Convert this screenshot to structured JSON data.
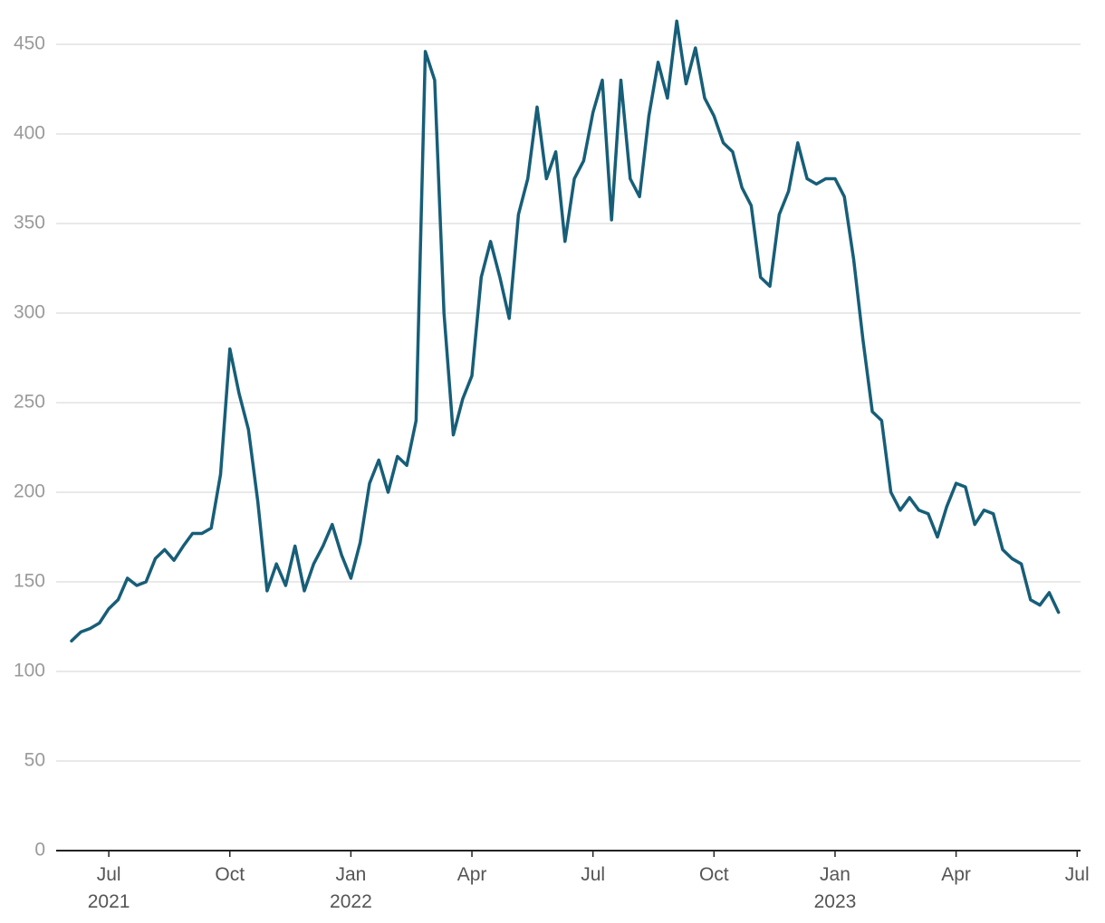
{
  "chart_data": {
    "type": "line",
    "categories": [
      null,
      null,
      null,
      null,
      "Jul 2021",
      null,
      null,
      null,
      null,
      null,
      null,
      null,
      null,
      null,
      null,
      null,
      null,
      "Oct",
      null,
      null,
      null,
      null,
      null,
      null,
      null,
      null,
      null,
      null,
      null,
      null,
      "Jan 2022",
      null,
      null,
      null,
      null,
      null,
      null,
      null,
      null,
      null,
      null,
      null,
      null,
      "Apr",
      null,
      null,
      null,
      null,
      null,
      null,
      null,
      null,
      null,
      null,
      null,
      null,
      "Jul",
      null,
      null,
      null,
      null,
      null,
      null,
      null,
      null,
      null,
      null,
      null,
      null,
      "Oct",
      null,
      null,
      null,
      null,
      null,
      null,
      null,
      null,
      null,
      null,
      null,
      null,
      "Jan 2023",
      null,
      null,
      null,
      null,
      null,
      null,
      null,
      null,
      null,
      null,
      null,
      null,
      "Apr",
      null,
      null,
      null,
      null,
      null,
      null,
      null,
      null,
      null,
      null,
      null,
      null,
      "Jul"
    ],
    "values": [
      117,
      122,
      124,
      127,
      135,
      140,
      152,
      148,
      150,
      163,
      168,
      162,
      170,
      177,
      177,
      180,
      210,
      280,
      255,
      235,
      195,
      145,
      160,
      148,
      170,
      145,
      160,
      170,
      182,
      165,
      152,
      172,
      205,
      218,
      200,
      220,
      215,
      240,
      446,
      430,
      300,
      232,
      252,
      265,
      320,
      340,
      320,
      297,
      355,
      375,
      415,
      375,
      390,
      340,
      375,
      385,
      412,
      430,
      352,
      430,
      375,
      365,
      410,
      440,
      420,
      463,
      428,
      448,
      420,
      410,
      395,
      390,
      370,
      360,
      320,
      315,
      355,
      368,
      395,
      375,
      372,
      375,
      375,
      365,
      330,
      285,
      245,
      240,
      200,
      190,
      197,
      190,
      188,
      175,
      192,
      205,
      203,
      182,
      190,
      188,
      168,
      163,
      160,
      140,
      137,
      144,
      133,
      null,
      null
    ],
    "color": "#175e78",
    "ylim": [
      0,
      450
    ],
    "yticks": [
      0,
      50,
      100,
      150,
      200,
      250,
      300,
      350,
      400,
      450
    ],
    "grid": true
  }
}
